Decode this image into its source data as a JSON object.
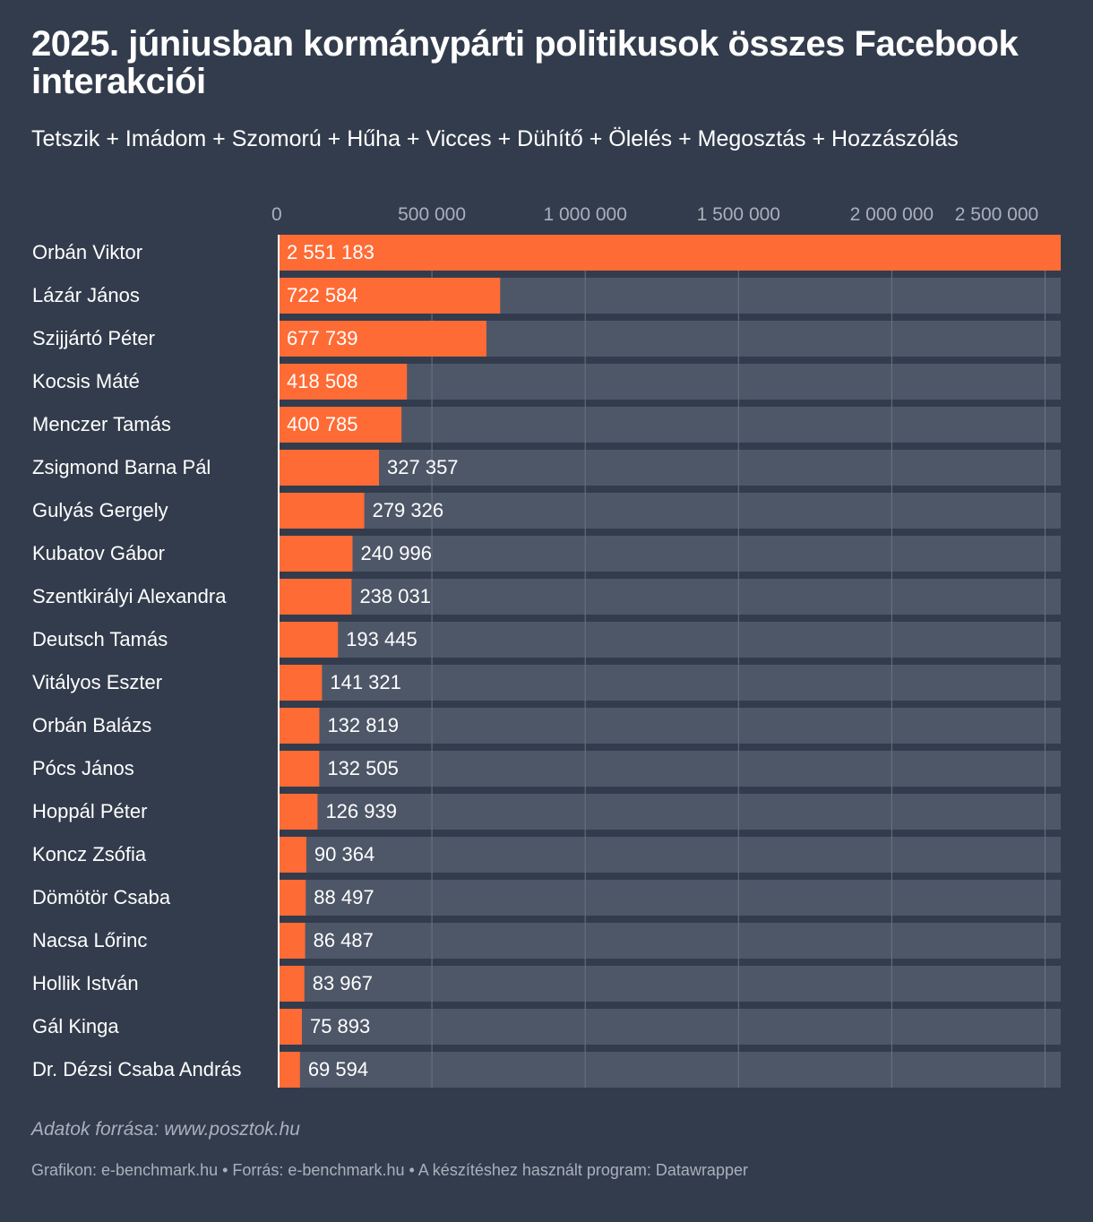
{
  "title": "2025. júniusban kormánypárti politikusok összes Facebook interakciói",
  "subtitle": "Tetszik + Imádom + Szomorú + Hűha + Vicces + Dühítő + Ölelés + Megosztás + Hozzászólás",
  "source_note": "Adatok forrása: www.posztok.hu",
  "footer": "Grafikon: e-benchmark.hu • Forrás: e-benchmark.hu • A készítéshez használt program: Datawrapper",
  "colors": {
    "background": "#333c4c",
    "bar": "#ff6b35",
    "track": "#4e5768",
    "grid": "#6a7383",
    "tick_text": "#aab1bd",
    "text": "#ffffff"
  },
  "chart_data": {
    "type": "bar",
    "orientation": "horizontal",
    "xlim": [
      0,
      2551183
    ],
    "ticks": [
      {
        "value": 0,
        "label": "0"
      },
      {
        "value": 500000,
        "label": "500 000"
      },
      {
        "value": 1000000,
        "label": "1 000 000"
      },
      {
        "value": 1500000,
        "label": "1 500 000"
      },
      {
        "value": 2000000,
        "label": "2 000 000"
      },
      {
        "value": 2500000,
        "label": "2 500 000"
      }
    ],
    "categories": [
      "Orbán Viktor",
      "Lázár János",
      "Szijjártó Péter",
      "Kocsis Máté",
      "Menczer Tamás",
      "Zsigmond Barna Pál",
      "Gulyás Gergely",
      "Kubatov Gábor",
      "Szentkirályi Alexandra",
      "Deutsch Tamás",
      "Vitályos Eszter",
      "Orbán Balázs",
      "Pócs János",
      "Hoppál Péter",
      "Koncz Zsófia",
      "Dömötör Csaba",
      "Nacsa Lőrinc",
      "Hollik István",
      "Gál Kinga",
      "Dr. Dézsi Csaba András"
    ],
    "values": [
      2551183,
      722584,
      677739,
      418508,
      400785,
      327357,
      279326,
      240996,
      238031,
      193445,
      141321,
      132819,
      132505,
      126939,
      90364,
      88497,
      86487,
      83967,
      75893,
      69594
    ],
    "value_labels": [
      "2 551 183",
      "722 584",
      "677 739",
      "418 508",
      "400 785",
      "327 357",
      "279 326",
      "240 996",
      "238 031",
      "193 445",
      "141 321",
      "132 819",
      "132 505",
      "126 939",
      "90 364",
      "88 497",
      "86 487",
      "83 967",
      "75 893",
      "69 594"
    ]
  }
}
